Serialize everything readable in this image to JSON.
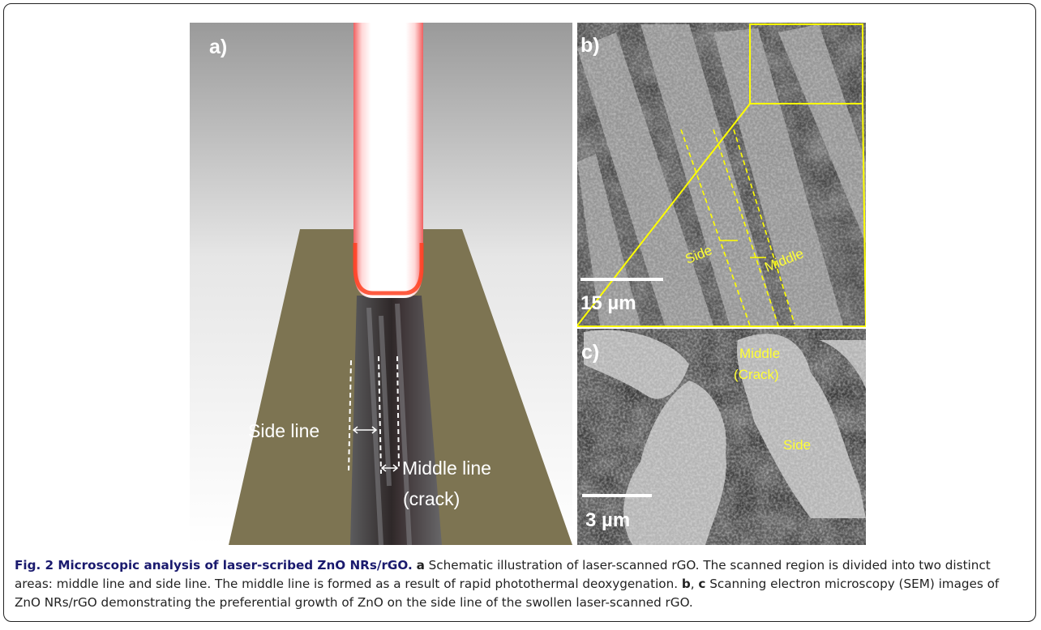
{
  "panels": {
    "a": {
      "label": "a)",
      "annotations": [
        "Side line",
        "Middle line",
        "(crack)"
      ]
    },
    "b": {
      "label": "b)",
      "annotations": [
        "Side",
        "Middle"
      ],
      "scale_bar": "15 µm"
    },
    "c": {
      "label": "c)",
      "annotations": [
        "Middle",
        "(Crack)",
        "Side"
      ],
      "scale_bar": "3 µm"
    }
  },
  "caption": {
    "title": "Fig. 2 Microscopic analysis of laser-scribed ZnO NRs/rGO.",
    "parts": [
      {
        "label": "a",
        "text": "Schematic illustration of laser-scanned rGO. The scanned region is divided into two distinct areas: middle line and side line. The middle line is formed as a result of rapid photothermal deoxygenation."
      },
      {
        "label": "b",
        "text": ","
      },
      {
        "label": "c",
        "text": "Scanning electron microscopy (SEM) images of ZnO NRs/rGO demonstrating the preferential growth of ZnO on the side line of the swollen laser-scanned rGO."
      }
    ]
  }
}
